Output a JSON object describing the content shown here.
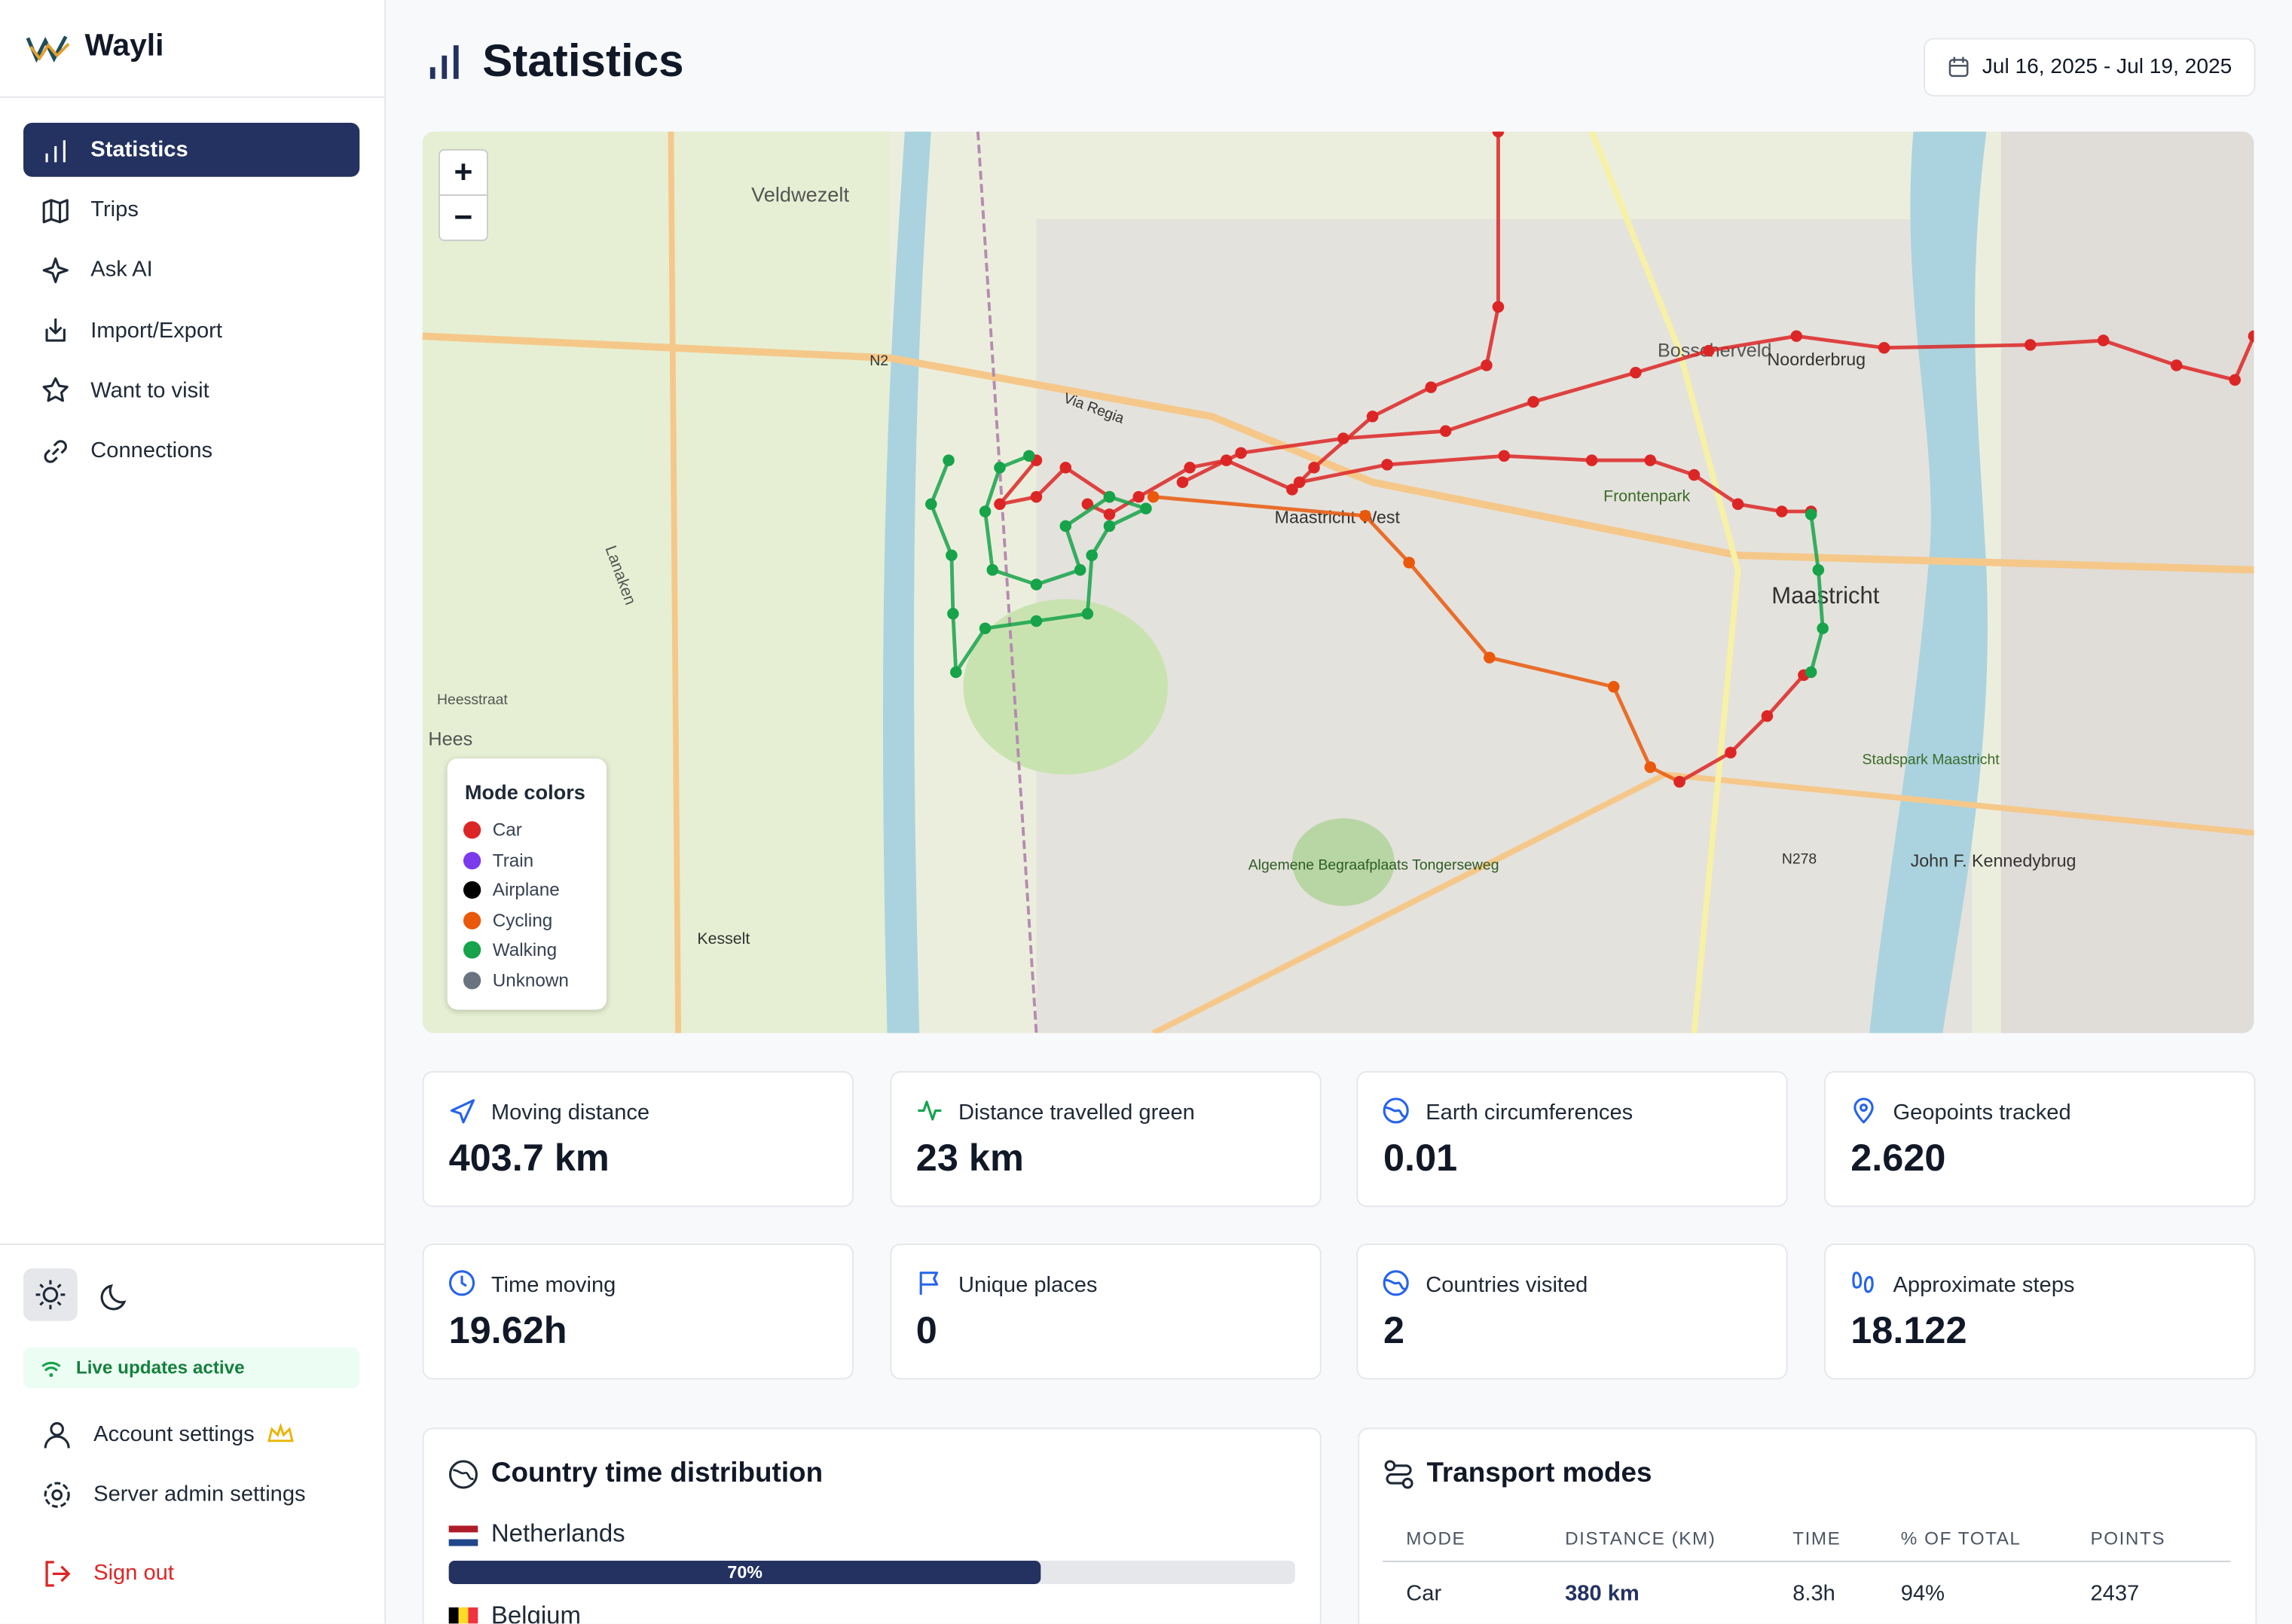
{
  "sidebar": {
    "brand": "Wayli",
    "nav": [
      "Statistics",
      "Trips",
      "Ask AI",
      "Import/Export",
      "Want to visit",
      "Connections"
    ],
    "status": "Live updates active",
    "account": [
      "Account settings",
      "Server admin settings"
    ],
    "sign_out": "Sign out"
  },
  "header": {
    "title": "Statistics",
    "date_range": "Jul 16, 2025 - Jul 19, 2025"
  },
  "map": {
    "zoom_in": "+",
    "zoom_out": "−",
    "legend_title": "Mode colors",
    "legend": [
      {
        "name": "Car",
        "color": "#dc2626"
      },
      {
        "name": "Train",
        "color": "#7c3aed"
      },
      {
        "name": "Airplane",
        "color": "#000000"
      },
      {
        "name": "Cycling",
        "color": "#ea580c"
      },
      {
        "name": "Walking",
        "color": "#16a34a"
      },
      {
        "name": "Unknown",
        "color": "#6b7280"
      }
    ],
    "labels": [
      "Veldwezelt",
      "Bosscherveld",
      "Noorderbrug",
      "Maastricht West",
      "Frontenpark",
      "Maastricht",
      "Lanaken",
      "Heesstraat",
      "Hees",
      "Kesselt",
      "Algemene Begraafplaats Tongerseweg",
      "Stadspark Maastricht",
      "John F. Kennedybrug",
      "N2",
      "N278",
      "Via Regia"
    ]
  },
  "stats": [
    {
      "label": "Moving distance",
      "value": "403.7 km"
    },
    {
      "label": "Distance travelled green",
      "value": "23 km"
    },
    {
      "label": "Earth circumferences",
      "value": "0.01"
    },
    {
      "label": "Geopoints tracked",
      "value": "2.620"
    },
    {
      "label": "Time moving",
      "value": "19.62h"
    },
    {
      "label": "Unique places",
      "value": "0"
    },
    {
      "label": "Countries visited",
      "value": "2"
    },
    {
      "label": "Approximate steps",
      "value": "18.122"
    }
  ],
  "country": {
    "title": "Country time distribution",
    "items": [
      {
        "name": "Netherlands",
        "percent": 70,
        "label": "70%"
      },
      {
        "name": "Belgium"
      }
    ]
  },
  "transport": {
    "title": "Transport modes",
    "columns": [
      "MODE",
      "DISTANCE (KM)",
      "TIME",
      "% OF TOTAL",
      "POINTS"
    ],
    "rows": [
      [
        "Car",
        "380 km",
        "8.3h",
        "94%",
        "2437"
      ]
    ]
  }
}
